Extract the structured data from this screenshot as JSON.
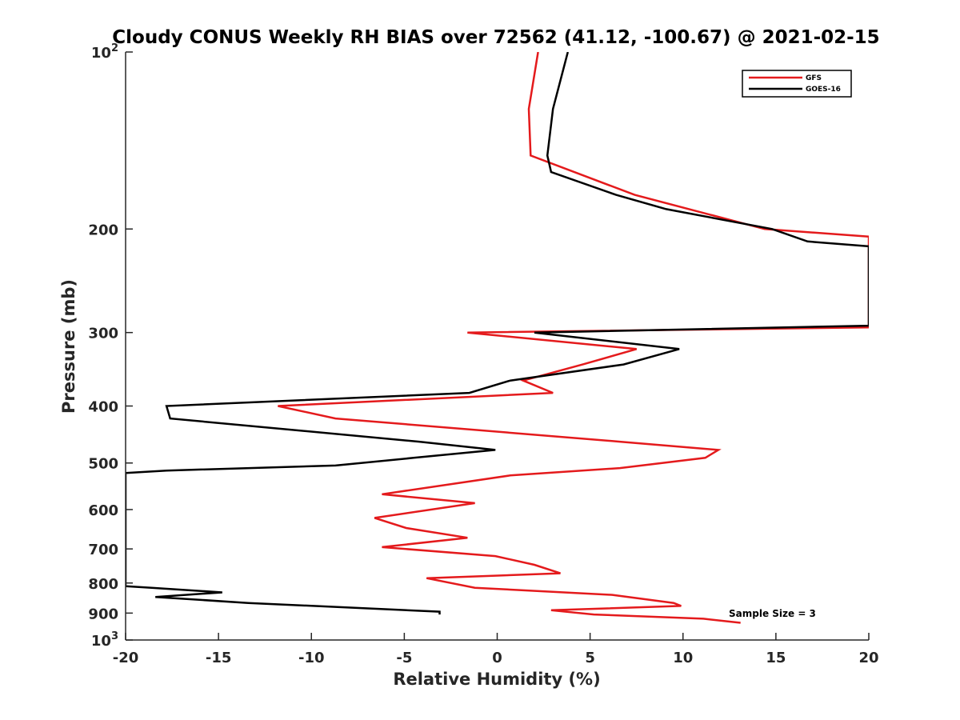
{
  "chart_data": {
    "type": "line",
    "title": "Cloudy CONUS Weekly RH BIAS over 72562 (41.12, -100.67) @ 2021-02-15",
    "xlabel": "Relative Humidity (%)",
    "ylabel": "Pressure (mb)",
    "xlim": [
      -20,
      20
    ],
    "ylim": [
      100,
      1000
    ],
    "y_scale": "log",
    "y_reversed": true,
    "grid": false,
    "legend_position": "top-right",
    "x_ticks": [
      "-20",
      "-15",
      "-10",
      "-5",
      "0",
      "5",
      "10",
      "15",
      "20"
    ],
    "y_ticks": [
      {
        "value": 100,
        "base": "10",
        "exp": "2"
      },
      {
        "value": 200,
        "label": "200"
      },
      {
        "value": 300,
        "label": "300"
      },
      {
        "value": 400,
        "label": "400"
      },
      {
        "value": 500,
        "label": "500"
      },
      {
        "value": 600,
        "label": "600"
      },
      {
        "value": 700,
        "label": "700"
      },
      {
        "value": 800,
        "label": "800"
      },
      {
        "value": 900,
        "label": "900"
      },
      {
        "value": 1000,
        "base": "10",
        "exp": "3"
      }
    ],
    "series": [
      {
        "name": "GFS",
        "color": "#e41a1c",
        "points": [
          [
            2.2,
            100
          ],
          [
            1.7,
            125
          ],
          [
            1.8,
            150
          ],
          [
            7.4,
            175
          ],
          [
            14.4,
            200
          ],
          [
            20,
            206
          ],
          [
            20,
            294
          ],
          [
            -1.6,
            300
          ],
          [
            7.5,
            320
          ],
          [
            4.6,
            340
          ],
          [
            1.4,
            362
          ],
          [
            3.0,
            380
          ],
          [
            -11.8,
            400
          ],
          [
            -8.7,
            420
          ],
          [
            6.6,
            460
          ],
          [
            11.9,
            475
          ],
          [
            11.2,
            490
          ],
          [
            6.6,
            510
          ],
          [
            0.7,
            525
          ],
          [
            -6.2,
            565
          ],
          [
            -1.2,
            585
          ],
          [
            -6.6,
            620
          ],
          [
            -4.9,
            645
          ],
          [
            -1.6,
            670
          ],
          [
            -6.2,
            695
          ],
          [
            -0.1,
            720
          ],
          [
            2.0,
            745
          ],
          [
            3.4,
            770
          ],
          [
            -3.8,
            785
          ],
          [
            -1.2,
            815
          ],
          [
            6.2,
            838
          ],
          [
            9.5,
            865
          ],
          [
            9.9,
            875
          ],
          [
            2.9,
            890
          ],
          [
            5.2,
            905
          ],
          [
            11.1,
            920
          ],
          [
            13.1,
            935
          ]
        ]
      },
      {
        "name": "GOES-16",
        "color": "#000000",
        "points": [
          [
            3.8,
            100
          ],
          [
            3.0,
            125
          ],
          [
            2.7,
            150
          ],
          [
            2.9,
            160
          ],
          [
            6.4,
            175
          ],
          [
            9.1,
            185
          ],
          [
            14.8,
            200
          ],
          [
            16.7,
            210
          ],
          [
            20,
            214
          ],
          [
            20,
            292
          ],
          [
            2.0,
            300
          ],
          [
            9.8,
            320
          ],
          [
            6.8,
            340
          ],
          [
            0.7,
            362
          ],
          [
            -1.5,
            380
          ],
          [
            -17.8,
            400
          ],
          [
            -17.6,
            420
          ],
          [
            -4.2,
            460
          ],
          [
            -0.1,
            475
          ],
          [
            -4.5,
            490
          ],
          [
            -8.7,
            505
          ],
          [
            -17.8,
            515
          ],
          [
            -20,
            520
          ],
          [
            -20,
            810
          ],
          [
            -18.6,
            815
          ],
          [
            -14.8,
            830
          ],
          [
            -18.4,
            845
          ],
          [
            -13.4,
            865
          ],
          [
            -3.1,
            895
          ],
          [
            -3.1,
            905
          ]
        ]
      }
    ],
    "annotation": "Sample Size = 3"
  }
}
